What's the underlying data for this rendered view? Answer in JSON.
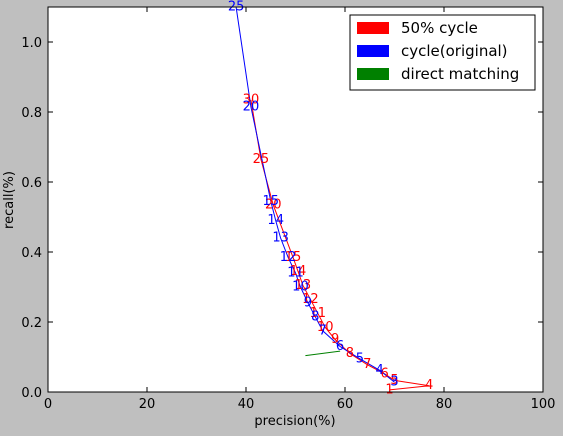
{
  "chart_data": {
    "type": "line",
    "xlabel": "precision(%)",
    "ylabel": "recall(%)",
    "xlim": [
      0,
      100
    ],
    "ylim": [
      0,
      1.1
    ],
    "xticks": [
      "0",
      "20",
      "40",
      "60",
      "80",
      "100"
    ],
    "yticks": [
      "0.0",
      "0.2",
      "0.4",
      "0.6",
      "0.8",
      "1.0"
    ],
    "legend_position": "top-right",
    "series": [
      {
        "name": "50% cycle",
        "color": "#ff0000",
        "points": [
          {
            "label": "1",
            "x": 69.0,
            "y": 0.006
          },
          {
            "label": "4",
            "x": 77.0,
            "y": 0.018
          },
          {
            "label": "5",
            "x": 70.0,
            "y": 0.033
          },
          {
            "label": "6",
            "x": 68.0,
            "y": 0.052
          },
          {
            "label": "7",
            "x": 64.5,
            "y": 0.078
          },
          {
            "label": "8",
            "x": 61.0,
            "y": 0.11
          },
          {
            "label": "9",
            "x": 58.0,
            "y": 0.15
          },
          {
            "label": "10",
            "x": 56.0,
            "y": 0.185
          },
          {
            "label": "11",
            "x": 54.5,
            "y": 0.225
          },
          {
            "label": "12",
            "x": 53.0,
            "y": 0.265
          },
          {
            "label": "13",
            "x": 51.5,
            "y": 0.305
          },
          {
            "label": "14",
            "x": 50.5,
            "y": 0.345
          },
          {
            "label": "15",
            "x": 49.5,
            "y": 0.385
          },
          {
            "label": "20",
            "x": 45.5,
            "y": 0.535
          },
          {
            "label": "25",
            "x": 43.0,
            "y": 0.665
          },
          {
            "label": "30",
            "x": 41.0,
            "y": 0.835
          }
        ]
      },
      {
        "name": "cycle(original)",
        "color": "#0000ff",
        "points": [
          {
            "label": "3",
            "x": 70.0,
            "y": 0.028
          },
          {
            "label": "4",
            "x": 67.0,
            "y": 0.062
          },
          {
            "label": "5",
            "x": 63.0,
            "y": 0.095
          },
          {
            "label": "6",
            "x": 59.0,
            "y": 0.13
          },
          {
            "label": "7",
            "x": 55.5,
            "y": 0.175
          },
          {
            "label": "8",
            "x": 54.0,
            "y": 0.215
          },
          {
            "label": "9",
            "x": 52.5,
            "y": 0.255
          },
          {
            "label": "10",
            "x": 51.0,
            "y": 0.3
          },
          {
            "label": "11",
            "x": 50.0,
            "y": 0.34
          },
          {
            "label": "12",
            "x": 48.5,
            "y": 0.385
          },
          {
            "label": "13",
            "x": 47.0,
            "y": 0.44
          },
          {
            "label": "14",
            "x": 46.0,
            "y": 0.49
          },
          {
            "label": "15",
            "x": 45.0,
            "y": 0.545
          },
          {
            "label": "20",
            "x": 41.0,
            "y": 0.815
          },
          {
            "label": "25",
            "x": 38.0,
            "y": 1.1
          }
        ]
      },
      {
        "name": "direct matching",
        "color": "#008000",
        "points": [
          {
            "label": "",
            "x": 52.0,
            "y": 0.104
          },
          {
            "label": "",
            "x": 59.0,
            "y": 0.117
          }
        ]
      }
    ]
  }
}
